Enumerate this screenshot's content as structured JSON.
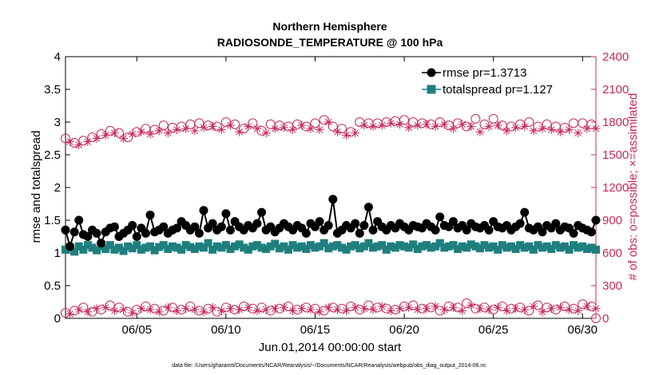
{
  "chart_data": {
    "type": "line",
    "title_line1": "Northern Hemisphere",
    "title_line2": "RADIOSONDE_TEMPERATURE @ 100 hPa",
    "xlabel": "Jun.01,2014 00:00:00 start",
    "ylabel_left": "rmse and totalspread",
    "ylabel_right": "# of obs: o=possible; ×=assimilated",
    "footer": "data file: /Users/gharamti/Documents/NCAR/Reanalysis/~/Documents/NCAR/Reanalysis/webpub/obs_diag_output_2014-06.nc",
    "xlim": [
      1.0,
      30.75
    ],
    "ylim_left": [
      0,
      4
    ],
    "ylim_right": [
      0,
      2400
    ],
    "x_ticks": [
      {
        "value": 5,
        "label": "06/05"
      },
      {
        "value": 10,
        "label": "06/10"
      },
      {
        "value": 15,
        "label": "06/15"
      },
      {
        "value": 20,
        "label": "06/20"
      },
      {
        "value": 25,
        "label": "06/25"
      },
      {
        "value": 30,
        "label": "06/30"
      }
    ],
    "y_ticks_left": [
      {
        "value": 0,
        "label": "0"
      },
      {
        "value": 0.5,
        "label": "0.5"
      },
      {
        "value": 1,
        "label": "1"
      },
      {
        "value": 1.5,
        "label": "1.5"
      },
      {
        "value": 2,
        "label": "2"
      },
      {
        "value": 2.5,
        "label": "2.5"
      },
      {
        "value": 3,
        "label": "3"
      },
      {
        "value": 3.5,
        "label": "3.5"
      },
      {
        "value": 4,
        "label": "4"
      }
    ],
    "y_ticks_right": [
      {
        "value": 0,
        "label": "0"
      },
      {
        "value": 300,
        "label": "300"
      },
      {
        "value": 600,
        "label": "600"
      },
      {
        "value": 900,
        "label": "900"
      },
      {
        "value": 1200,
        "label": "1200"
      },
      {
        "value": 1500,
        "label": "1500"
      },
      {
        "value": 1800,
        "label": "1800"
      },
      {
        "value": 2100,
        "label": "2100"
      },
      {
        "value": 2400,
        "label": "2400"
      }
    ],
    "legend": [
      {
        "label": "rmse pr=1.3713",
        "color": "#000000"
      },
      {
        "label": "totalspread pr=1.127",
        "color": "#1f7f7f"
      }
    ],
    "colors": {
      "rmse": "#000000",
      "spread": "#1f7f7f",
      "obs": "#c8285a"
    },
    "series": [
      {
        "name": "rmse",
        "axis": "left",
        "x": [
          1.0,
          1.25,
          1.5,
          1.75,
          2.0,
          2.25,
          2.5,
          2.75,
          3.0,
          3.25,
          3.5,
          3.75,
          4.0,
          4.25,
          4.5,
          4.75,
          5.0,
          5.25,
          5.5,
          5.75,
          6.0,
          6.25,
          6.5,
          6.75,
          7.0,
          7.25,
          7.5,
          7.75,
          8.0,
          8.25,
          8.5,
          8.75,
          9.0,
          9.25,
          9.5,
          9.75,
          10.0,
          10.25,
          10.5,
          10.75,
          11.0,
          11.25,
          11.5,
          11.75,
          12.0,
          12.25,
          12.5,
          12.75,
          13.0,
          13.25,
          13.5,
          13.75,
          14.0,
          14.25,
          14.5,
          14.75,
          15.0,
          15.25,
          15.5,
          15.75,
          16.0,
          16.25,
          16.5,
          16.75,
          17.0,
          17.25,
          17.5,
          17.75,
          18.0,
          18.25,
          18.5,
          18.75,
          19.0,
          19.25,
          19.5,
          19.75,
          20.0,
          20.25,
          20.5,
          20.75,
          21.0,
          21.25,
          21.5,
          21.75,
          22.0,
          22.25,
          22.5,
          22.75,
          23.0,
          23.25,
          23.5,
          23.75,
          24.0,
          24.25,
          24.5,
          24.75,
          25.0,
          25.25,
          25.5,
          25.75,
          26.0,
          26.25,
          26.5,
          26.75,
          27.0,
          27.25,
          27.5,
          27.75,
          28.0,
          28.25,
          28.5,
          28.75,
          29.0,
          29.25,
          29.5,
          29.75,
          30.0,
          30.25,
          30.5,
          30.75
        ],
        "values": [
          1.35,
          1.1,
          1.32,
          1.5,
          1.28,
          1.25,
          1.35,
          1.3,
          1.15,
          1.32,
          1.38,
          1.4,
          1.25,
          1.3,
          1.35,
          1.42,
          1.25,
          1.38,
          1.3,
          1.58,
          1.32,
          1.35,
          1.4,
          1.3,
          1.35,
          1.38,
          1.48,
          1.42,
          1.35,
          1.4,
          1.3,
          1.65,
          1.38,
          1.45,
          1.35,
          1.4,
          1.6,
          1.35,
          1.48,
          1.4,
          1.35,
          1.42,
          1.38,
          1.45,
          1.62,
          1.35,
          1.4,
          1.32,
          1.38,
          1.45,
          1.4,
          1.35,
          1.42,
          1.38,
          1.3,
          1.45,
          1.4,
          1.48,
          1.35,
          1.42,
          1.82,
          1.3,
          1.35,
          1.42,
          1.38,
          1.45,
          1.3,
          1.42,
          1.7,
          1.35,
          1.48,
          1.4,
          1.35,
          1.42,
          1.38,
          1.45,
          1.4,
          1.35,
          1.42,
          1.4,
          1.38,
          1.45,
          1.4,
          1.35,
          1.55,
          1.42,
          1.4,
          1.48,
          1.38,
          1.42,
          1.35,
          1.45,
          1.4,
          1.38,
          1.42,
          1.35,
          1.48,
          1.4,
          1.38,
          1.42,
          1.35,
          1.4,
          1.45,
          1.62,
          1.38,
          1.35,
          1.4,
          1.32,
          1.42,
          1.38,
          1.45,
          1.35,
          1.4,
          1.38,
          1.3,
          1.42,
          1.38,
          1.35,
          1.32,
          1.5
        ]
      },
      {
        "name": "totalspread",
        "axis": "left",
        "x": [
          1.0,
          1.25,
          1.5,
          1.75,
          2.0,
          2.25,
          2.5,
          2.75,
          3.0,
          3.25,
          3.5,
          3.75,
          4.0,
          4.25,
          4.5,
          4.75,
          5.0,
          5.25,
          5.5,
          5.75,
          6.0,
          6.25,
          6.5,
          6.75,
          7.0,
          7.25,
          7.5,
          7.75,
          8.0,
          8.25,
          8.5,
          8.75,
          9.0,
          9.25,
          9.5,
          9.75,
          10.0,
          10.25,
          10.5,
          10.75,
          11.0,
          11.25,
          11.5,
          11.75,
          12.0,
          12.25,
          12.5,
          12.75,
          13.0,
          13.25,
          13.5,
          13.75,
          14.0,
          14.25,
          14.5,
          14.75,
          15.0,
          15.25,
          15.5,
          15.75,
          16.0,
          16.25,
          16.5,
          16.75,
          17.0,
          17.25,
          17.5,
          17.75,
          18.0,
          18.25,
          18.5,
          18.75,
          19.0,
          19.25,
          19.5,
          19.75,
          20.0,
          20.25,
          20.5,
          20.75,
          21.0,
          21.25,
          21.5,
          21.75,
          22.0,
          22.25,
          22.5,
          22.75,
          23.0,
          23.25,
          23.5,
          23.75,
          24.0,
          24.25,
          24.5,
          24.75,
          25.0,
          25.25,
          25.5,
          25.75,
          26.0,
          26.25,
          26.5,
          26.75,
          27.0,
          27.25,
          27.5,
          27.75,
          28.0,
          28.25,
          28.5,
          28.75,
          29.0,
          29.25,
          29.5,
          29.75,
          30.0,
          30.25,
          30.5,
          30.75
        ],
        "values": [
          1.05,
          1.08,
          1.02,
          1.1,
          1.05,
          1.12,
          1.08,
          1.04,
          1.1,
          1.06,
          1.12,
          1.05,
          1.08,
          1.03,
          1.1,
          1.07,
          1.12,
          1.05,
          1.08,
          1.1,
          1.04,
          1.09,
          1.12,
          1.06,
          1.1,
          1.08,
          1.05,
          1.12,
          1.09,
          1.06,
          1.1,
          1.08,
          1.15,
          1.05,
          1.1,
          1.08,
          1.12,
          1.06,
          1.1,
          1.13,
          1.08,
          1.05,
          1.1,
          1.12,
          1.08,
          1.06,
          1.1,
          1.14,
          1.07,
          1.1,
          1.05,
          1.12,
          1.08,
          1.1,
          1.06,
          1.12,
          1.08,
          1.1,
          1.15,
          1.07,
          1.1,
          1.12,
          1.08,
          1.05,
          1.1,
          1.12,
          1.07,
          1.1,
          1.15,
          1.08,
          1.1,
          1.12,
          1.05,
          1.1,
          1.08,
          1.12,
          1.1,
          1.08,
          1.13,
          1.06,
          1.1,
          1.12,
          1.08,
          1.1,
          1.15,
          1.08,
          1.1,
          1.12,
          1.06,
          1.1,
          1.08,
          1.13,
          1.1,
          1.07,
          1.12,
          1.08,
          1.1,
          1.05,
          1.12,
          1.08,
          1.1,
          1.06,
          1.12,
          1.08,
          1.1,
          1.05,
          1.12,
          1.08,
          1.1,
          1.06,
          1.12,
          1.08,
          1.1,
          1.05,
          1.12,
          1.08,
          1.1,
          1.06,
          1.08,
          1.05
        ]
      },
      {
        "name": "obs_possible",
        "axis": "right",
        "marker": "circle",
        "x": [
          1.0,
          1.5,
          2.0,
          2.5,
          3.0,
          3.5,
          4.0,
          4.5,
          5.0,
          5.5,
          6.0,
          6.5,
          7.0,
          7.5,
          8.0,
          8.5,
          9.0,
          9.5,
          10.0,
          10.5,
          11.0,
          11.5,
          12.0,
          12.5,
          13.0,
          13.5,
          14.0,
          14.5,
          15.0,
          15.5,
          16.0,
          16.5,
          17.0,
          17.5,
          18.0,
          18.5,
          19.0,
          19.5,
          20.0,
          20.5,
          21.0,
          21.5,
          22.0,
          22.5,
          23.0,
          23.5,
          24.0,
          24.5,
          25.0,
          25.5,
          26.0,
          26.5,
          27.0,
          27.5,
          28.0,
          28.5,
          29.0,
          29.5,
          30.0,
          30.5
        ],
        "values": [
          1650,
          1610,
          1630,
          1660,
          1690,
          1720,
          1700,
          1660,
          1710,
          1740,
          1730,
          1770,
          1750,
          1760,
          1780,
          1790,
          1770,
          1760,
          1800,
          1780,
          1740,
          1790,
          1720,
          1780,
          1770,
          1760,
          1780,
          1760,
          1790,
          1820,
          1760,
          1740,
          1710,
          1800,
          1790,
          1790,
          1800,
          1810,
          1820,
          1800,
          1790,
          1780,
          1800,
          1770,
          1790,
          1760,
          1830,
          1780,
          1830,
          1770,
          1760,
          1780,
          1800,
          1760,
          1780,
          1760,
          1750,
          1790,
          1790,
          1780
        ]
      },
      {
        "name": "obs_assimilated",
        "axis": "right",
        "marker": "asterisk",
        "x": [
          1.25,
          1.75,
          2.25,
          2.75,
          3.25,
          3.75,
          4.25,
          4.75,
          5.25,
          5.75,
          6.25,
          6.75,
          7.25,
          7.75,
          8.25,
          8.75,
          9.25,
          9.75,
          10.25,
          10.75,
          11.25,
          11.75,
          12.25,
          12.75,
          13.25,
          13.75,
          14.25,
          14.75,
          15.25,
          15.75,
          16.25,
          16.75,
          17.25,
          17.75,
          18.25,
          18.75,
          19.25,
          19.75,
          20.25,
          20.75,
          21.25,
          21.75,
          22.25,
          22.75,
          23.25,
          23.75,
          24.25,
          24.75,
          25.25,
          25.75,
          26.25,
          26.75,
          27.25,
          27.75,
          28.25,
          28.75,
          29.25,
          29.75,
          30.25,
          30.75
        ],
        "values": [
          1620,
          1590,
          1620,
          1650,
          1680,
          1700,
          1650,
          1690,
          1710,
          1690,
          1720,
          1700,
          1730,
          1740,
          1720,
          1750,
          1760,
          1730,
          1770,
          1710,
          1760,
          1740,
          1700,
          1740,
          1750,
          1730,
          1770,
          1740,
          1730,
          1800,
          1710,
          1680,
          1700,
          1770,
          1760,
          1770,
          1790,
          1780,
          1750,
          1770,
          1780,
          1760,
          1780,
          1740,
          1780,
          1760,
          1710,
          1760,
          1770,
          1720,
          1750,
          1760,
          1720,
          1740,
          1730,
          1710,
          1730,
          1700,
          1740,
          1740
        ]
      },
      {
        "name": "obs_low_possible",
        "axis": "right",
        "marker": "circle",
        "x": [
          1.0,
          1.5,
          2.0,
          2.5,
          3.0,
          3.5,
          4.0,
          4.5,
          5.0,
          5.5,
          6.0,
          6.5,
          7.0,
          7.5,
          8.0,
          8.5,
          9.0,
          9.5,
          10.0,
          10.5,
          11.0,
          11.5,
          12.0,
          12.5,
          13.0,
          13.5,
          14.0,
          14.5,
          15.0,
          15.5,
          16.0,
          16.5,
          17.0,
          17.5,
          18.0,
          18.5,
          19.0,
          19.5,
          20.0,
          20.5,
          21.0,
          21.5,
          22.0,
          22.5,
          23.0,
          23.5,
          24.0,
          24.5,
          25.0,
          25.5,
          26.0,
          26.5,
          27.0,
          27.5,
          28.0,
          28.5,
          29.0,
          29.5,
          30.0,
          30.5,
          30.75
        ],
        "values": [
          50,
          70,
          100,
          60,
          80,
          120,
          100,
          60,
          80,
          110,
          90,
          70,
          100,
          80,
          110,
          70,
          90,
          60,
          100,
          80,
          110,
          90,
          100,
          70,
          90,
          110,
          80,
          100,
          90,
          70,
          100,
          90,
          110,
          80,
          120,
          100,
          90,
          80,
          110,
          120,
          90,
          100,
          70,
          110,
          100,
          140,
          90,
          100,
          80,
          110,
          90,
          100,
          70,
          120,
          100,
          80,
          110,
          90,
          130,
          110,
          0
        ]
      },
      {
        "name": "obs_low_assimilated",
        "axis": "right",
        "marker": "asterisk",
        "x": [
          1.25,
          1.75,
          2.25,
          2.75,
          3.25,
          3.75,
          4.25,
          4.75,
          5.25,
          5.75,
          6.25,
          6.75,
          7.25,
          7.75,
          8.25,
          8.75,
          9.25,
          9.75,
          10.25,
          10.75,
          11.25,
          11.75,
          12.25,
          12.75,
          13.25,
          13.75,
          14.25,
          14.75,
          15.25,
          15.75,
          16.25,
          16.75,
          17.25,
          17.75,
          18.25,
          18.75,
          19.25,
          19.75,
          20.25,
          20.75,
          21.25,
          21.75,
          22.25,
          22.75,
          23.25,
          23.75,
          24.25,
          24.75,
          25.25,
          25.75,
          26.25,
          26.75,
          27.25,
          27.75,
          28.25,
          28.75,
          29.25,
          29.75,
          30.25,
          30.75
        ],
        "values": [
          40,
          80,
          60,
          90,
          100,
          70,
          80,
          50,
          90,
          80,
          60,
          100,
          70,
          90,
          80,
          60,
          100,
          70,
          90,
          80,
          100,
          70,
          80,
          90,
          100,
          70,
          90,
          80,
          60,
          100,
          80,
          70,
          100,
          90,
          80,
          110,
          70,
          90,
          100,
          80,
          90,
          110,
          80,
          100,
          70,
          120,
          90,
          80,
          100,
          70,
          90,
          80,
          110,
          60,
          90,
          100,
          80,
          70,
          110,
          90
        ]
      }
    ]
  }
}
